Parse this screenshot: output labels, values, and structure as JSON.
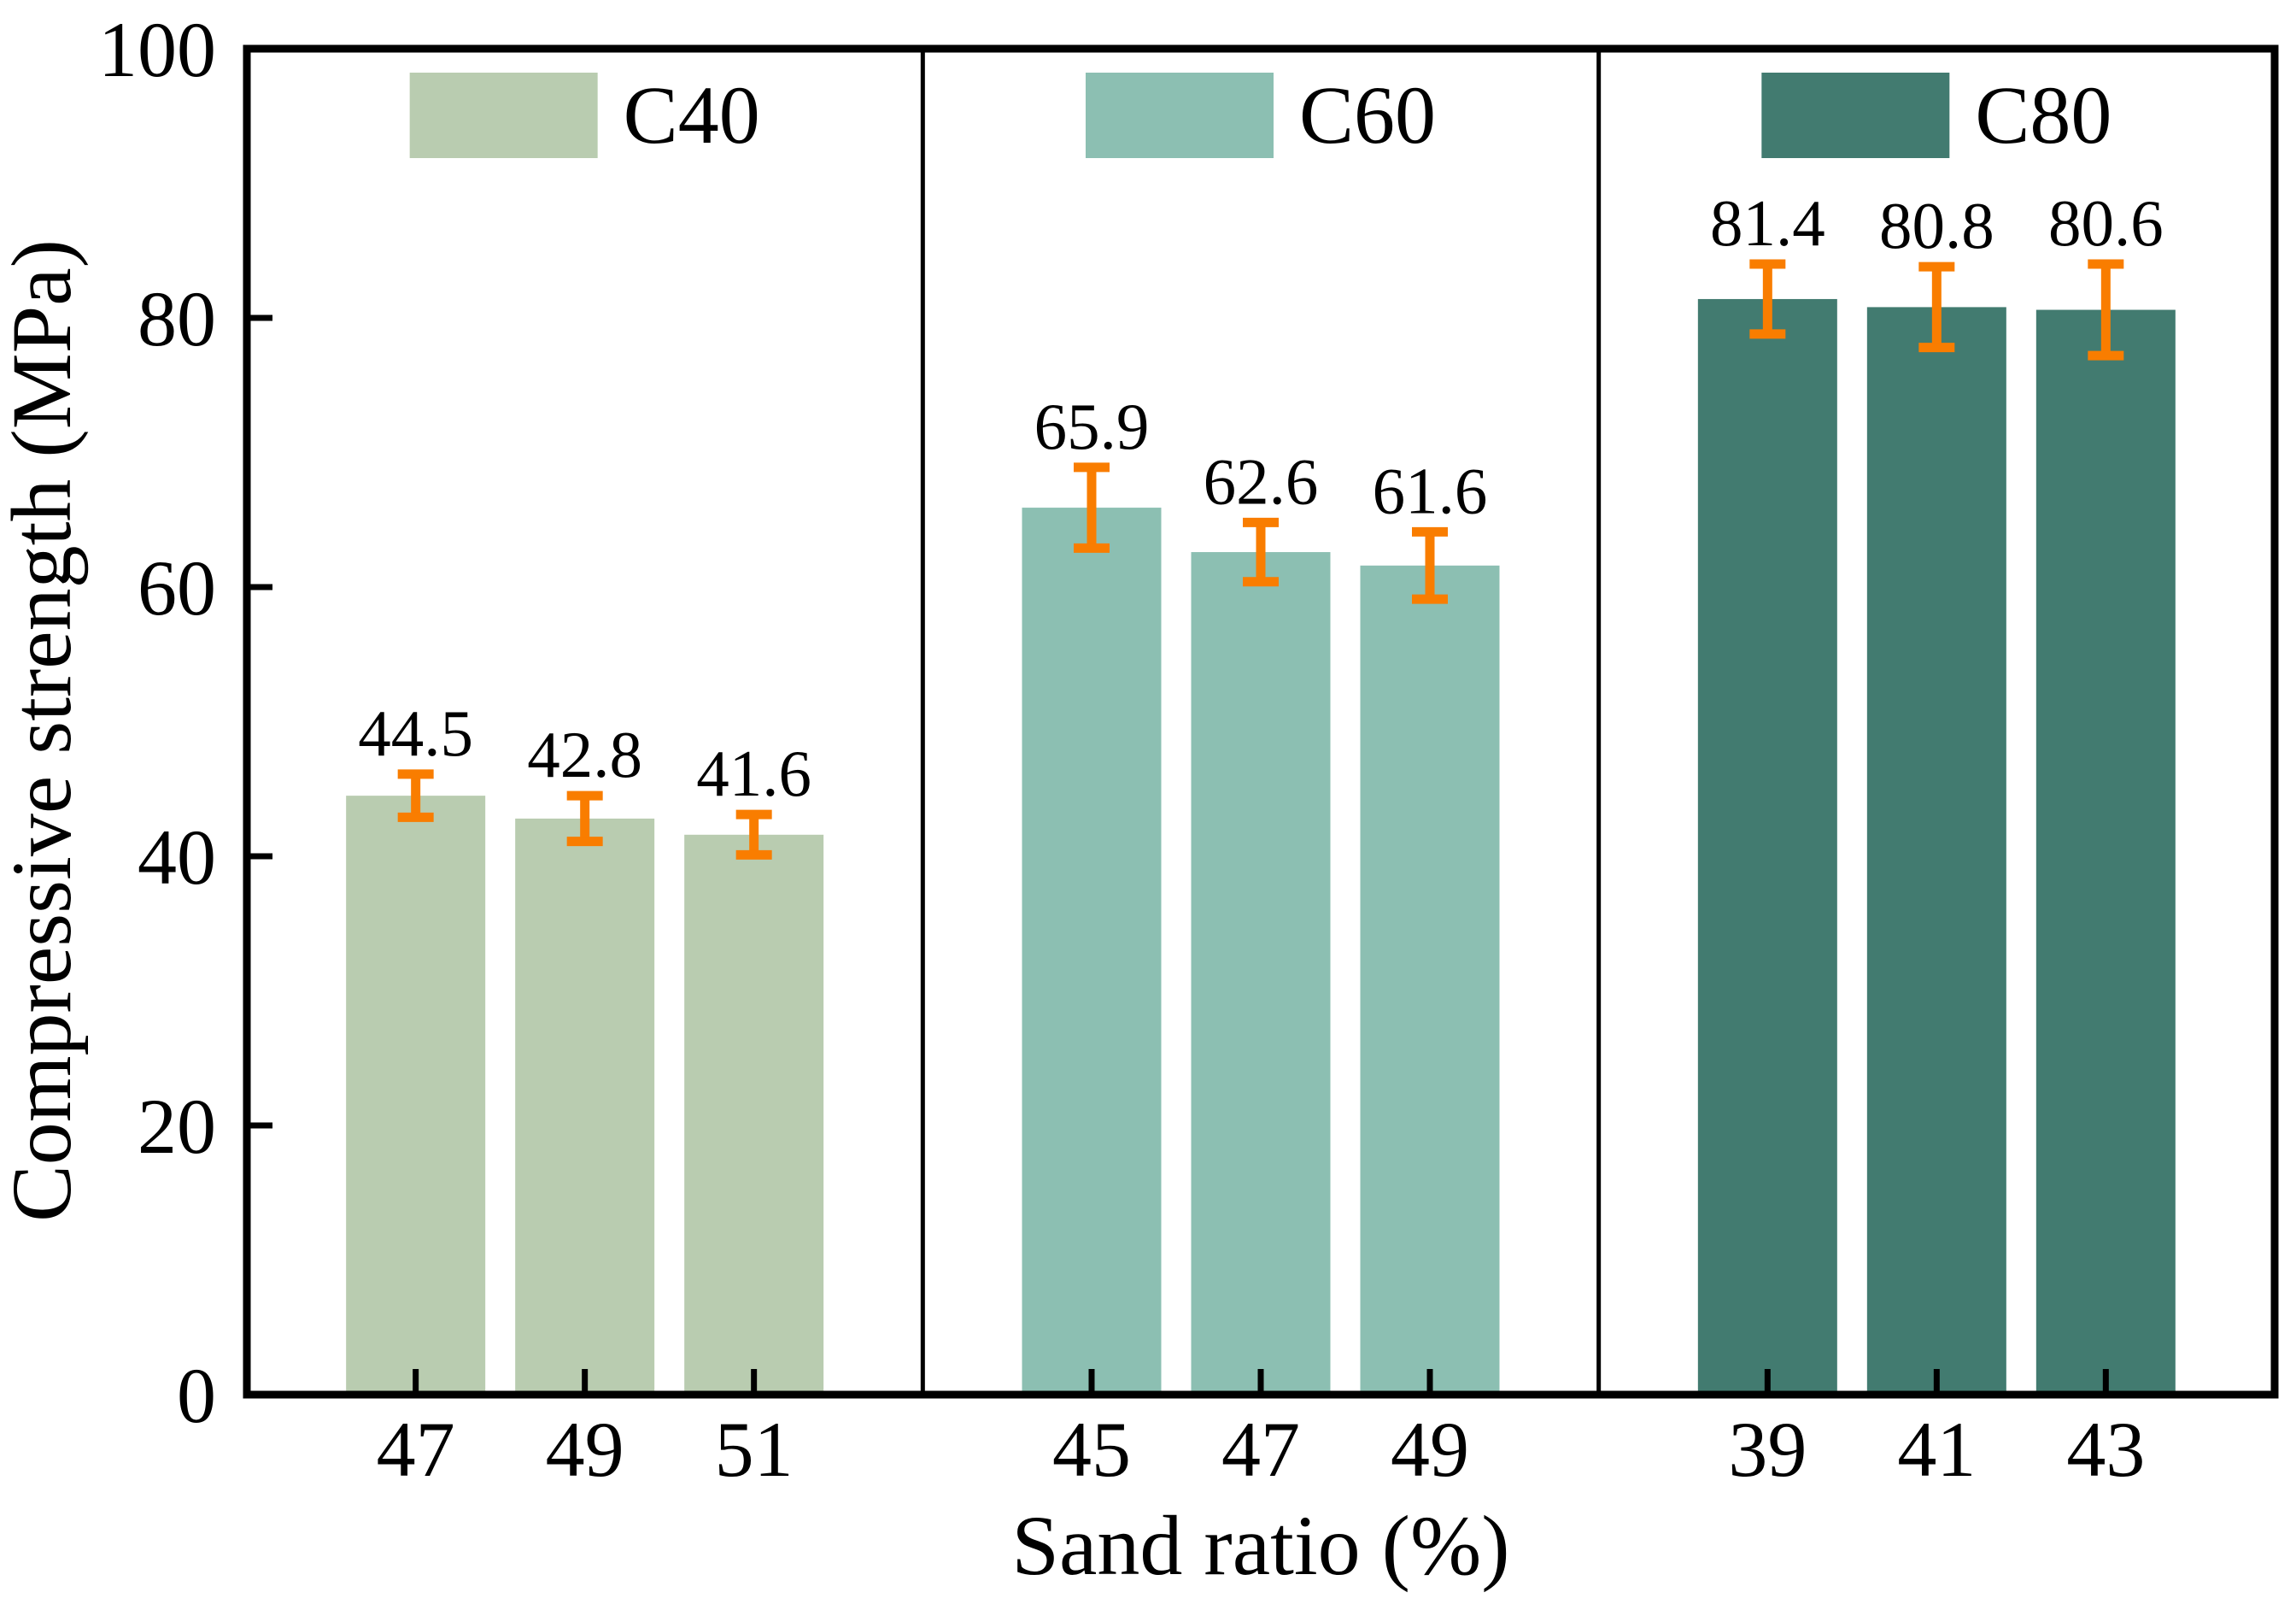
{
  "chart_data": {
    "type": "bar",
    "title": "",
    "xlabel": "Sand ratio (%)",
    "ylabel": "Compressive strength (MPa)",
    "ylim": [
      0,
      100
    ],
    "yticks": [
      0,
      20,
      40,
      60,
      80,
      100
    ],
    "grid": false,
    "panels": 3,
    "legend_position": "top-center of each panel",
    "axis_color": "#000000",
    "error_bar_color": "#f97d00",
    "groups": [
      {
        "name": "C40",
        "color": "#b9ccb0",
        "categories": [
          "47",
          "49",
          "51"
        ],
        "values": [
          44.5,
          42.8,
          41.6
        ],
        "errors": [
          1.6,
          1.7,
          1.5
        ],
        "value_labels": [
          "44.5",
          "42.8",
          "41.6"
        ]
      },
      {
        "name": "C60",
        "color": "#8cbfb2",
        "categories": [
          "45",
          "47",
          "49"
        ],
        "values": [
          65.9,
          62.6,
          61.6
        ],
        "errors": [
          3.0,
          2.2,
          2.5
        ],
        "value_labels": [
          "65.9",
          "62.6",
          "61.6"
        ]
      },
      {
        "name": "C80",
        "color": "#427b70",
        "categories": [
          "39",
          "41",
          "43"
        ],
        "values": [
          81.4,
          80.8,
          80.6
        ],
        "errors": [
          2.6,
          3.0,
          3.4
        ],
        "value_labels": [
          "81.4",
          "80.8",
          "80.6"
        ]
      }
    ]
  }
}
